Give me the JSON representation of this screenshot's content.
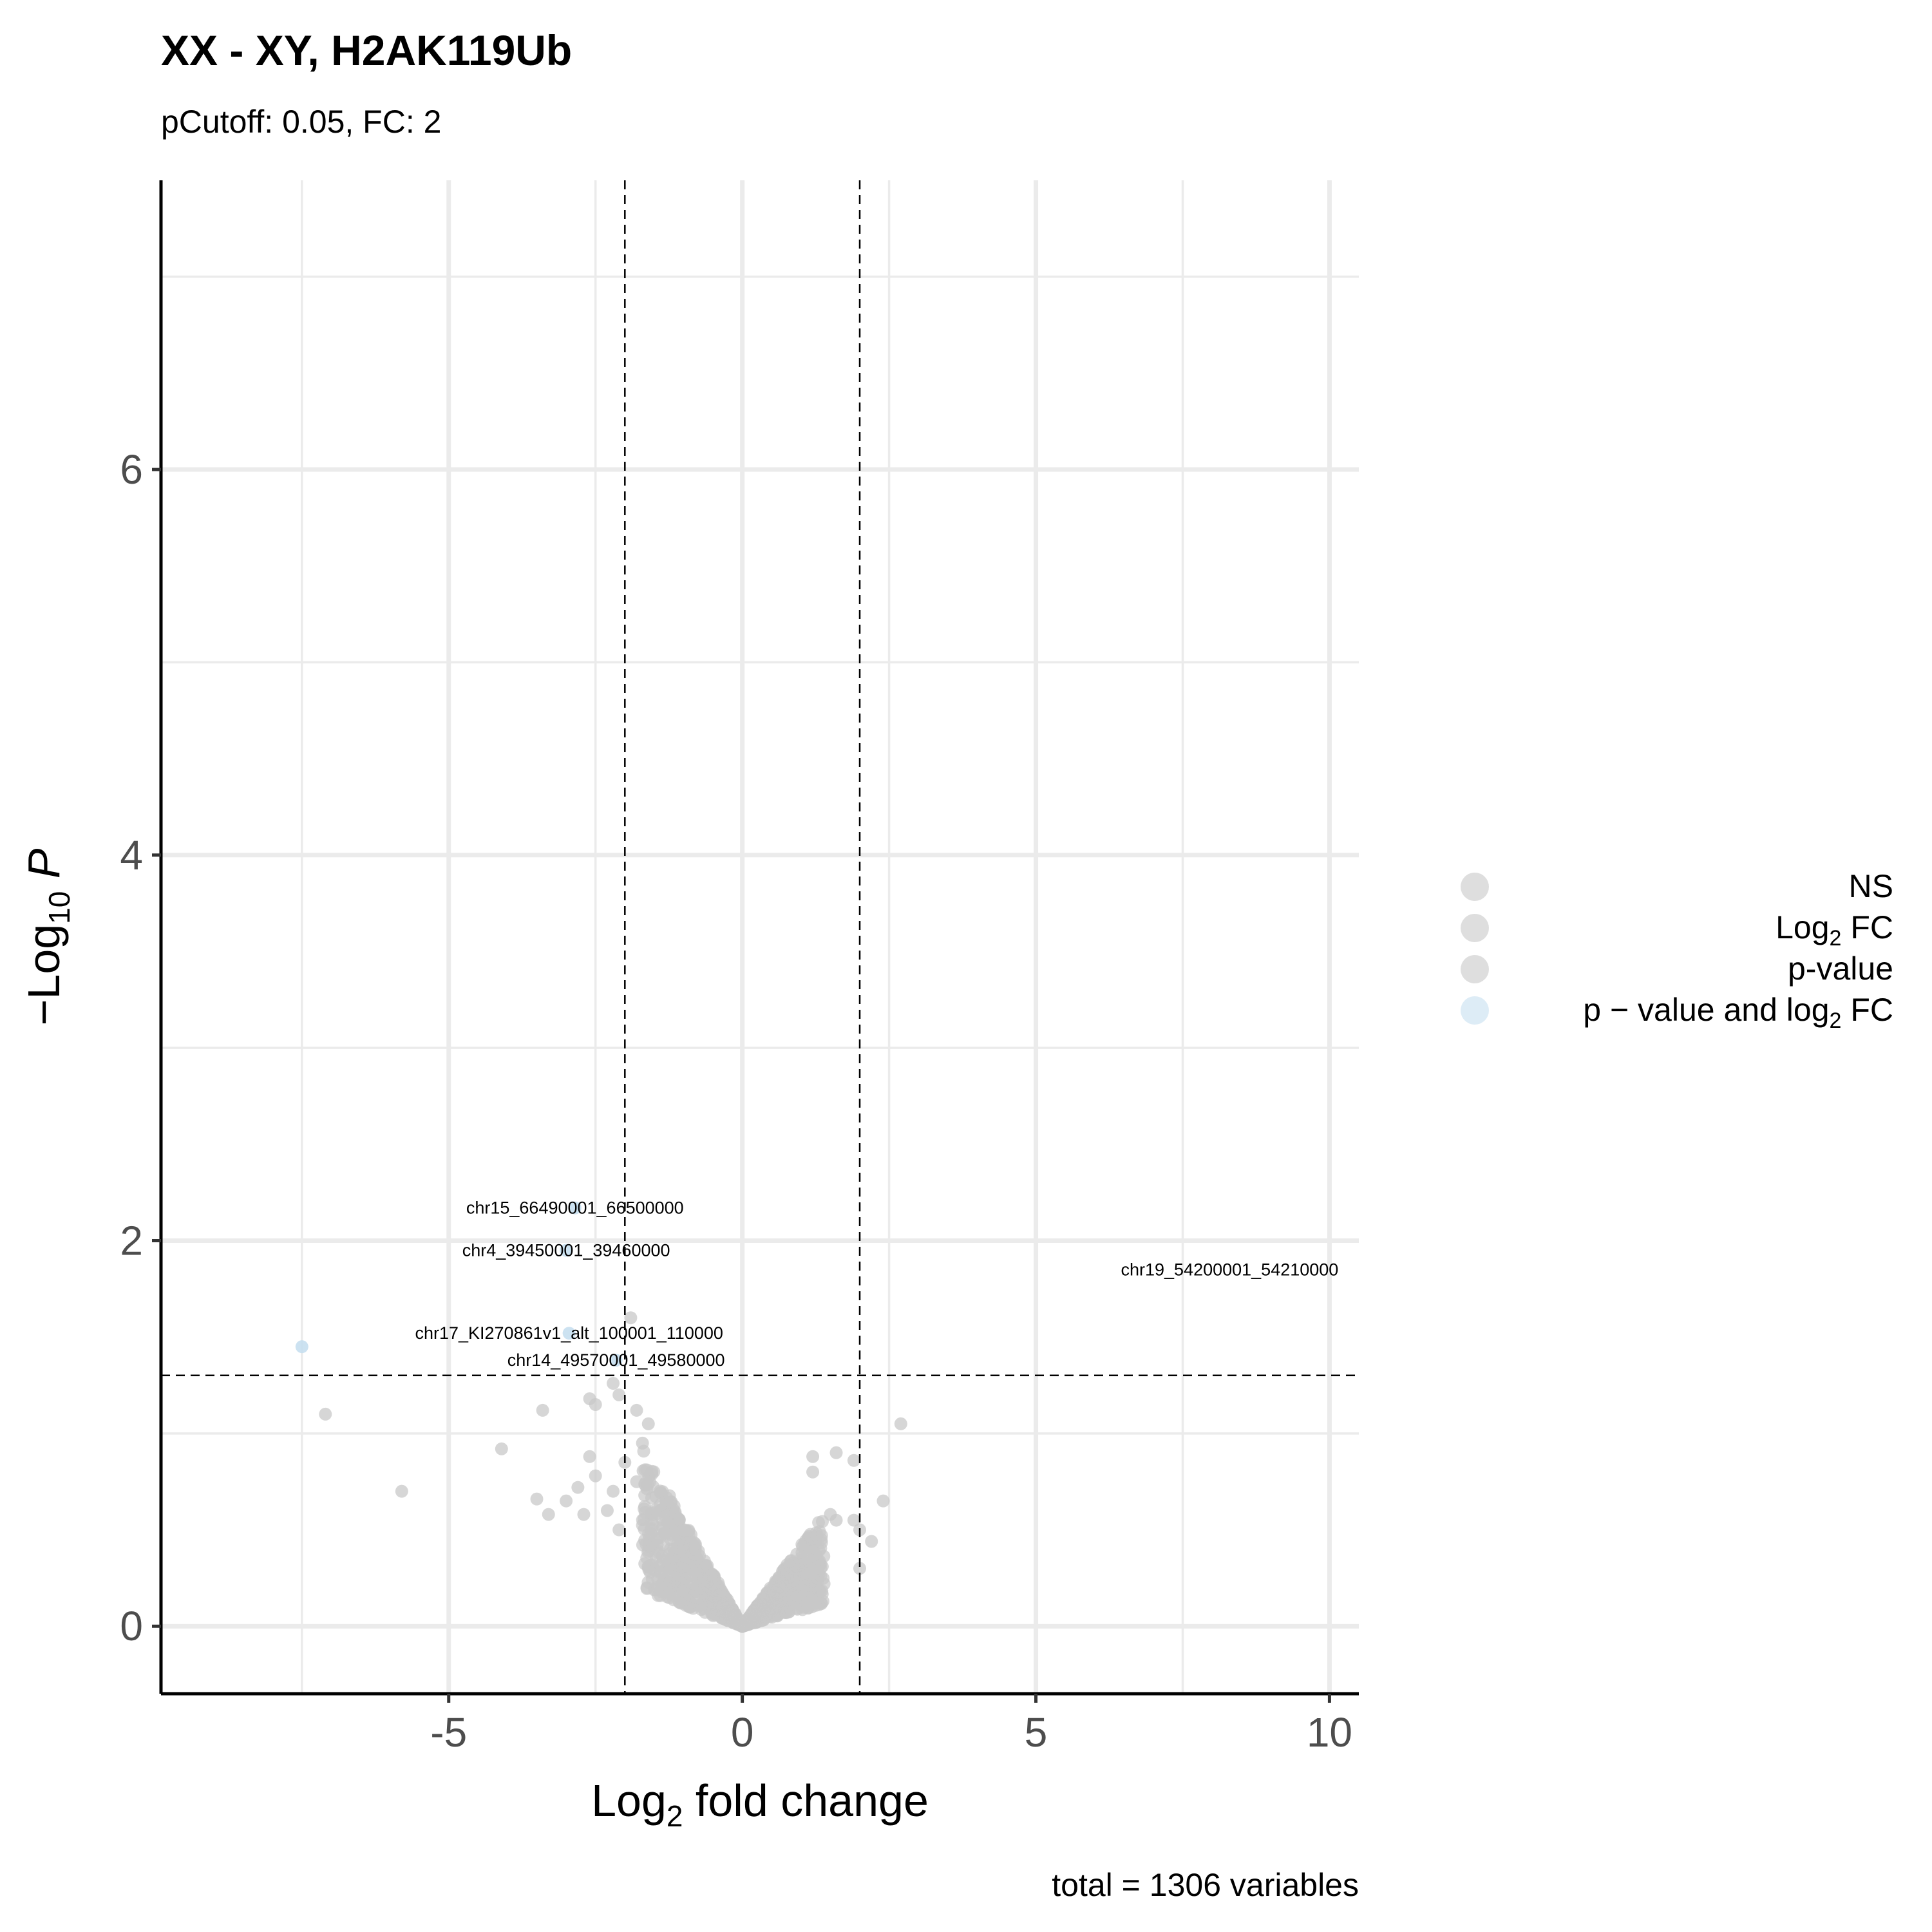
{
  "title": "XX - XY, H2AK119Ub",
  "subtitle": "pCutoff: 0.05, FC: 2",
  "caption": "total = 1306 variables",
  "colors": {
    "ns": "#c8c8c8",
    "sig": "#c6dff0",
    "grid": "#ebebeb",
    "axis": "#000000",
    "cutoff_line": "#000000",
    "label_text": "#000000"
  },
  "legend": {
    "items": [
      {
        "key": "ns",
        "label_html": "NS",
        "color": "#c8c8c8"
      },
      {
        "key": "log2fc",
        "label_html": "Log<sub>2</sub> FC",
        "color": "#c8c8c8"
      },
      {
        "key": "pvalue",
        "label_html": "p-value",
        "color": "#c8c8c8"
      },
      {
        "key": "both",
        "label_html": "p &minus; value and log<sub>2</sub> FC",
        "color": "#c6dff0"
      }
    ]
  },
  "chart_data": {
    "type": "scatter",
    "title": "XX - XY, H2AK119Ub",
    "subtitle": "pCutoff: 0.05, FC: 2",
    "xlabel": "Log2 fold change",
    "ylabel": "-Log10 P",
    "xlim": [
      -9.9,
      10.5
    ],
    "ylim": [
      -0.35,
      7.5
    ],
    "x_ticks": [
      -5,
      0,
      5,
      10
    ],
    "x_tick_labels": [
      "-5",
      "0",
      "5",
      "10"
    ],
    "y_ticks": [
      0,
      2,
      4,
      6
    ],
    "y_tick_labels": [
      "0",
      "2",
      "4",
      "6"
    ],
    "grid": true,
    "legend_position": "right",
    "cutoffs": {
      "log2fc": [
        -2,
        2
      ],
      "neg_log10_p": 1.301
    },
    "highlighted_points": [
      {
        "x": -7.5,
        "y": 1.45,
        "group": "p-value and log2 FC"
      },
      {
        "x": -2.95,
        "y": 1.52,
        "group": "p-value and log2 FC"
      },
      {
        "x": -2.15,
        "y": 1.38,
        "group": "p-value and log2 FC"
      },
      {
        "x": -2.85,
        "y": 2.17,
        "group": "p-value and log2 FC"
      },
      {
        "x": -3.0,
        "y": 1.95,
        "group": "p-value and log2 FC"
      }
    ],
    "labeled_points": [
      {
        "label": "chr15_66490001_66500000",
        "x": -2.85,
        "y": 2.17
      },
      {
        "label": "chr4_39450001_39460000",
        "x": -3.0,
        "y": 1.95
      },
      {
        "label": "chr19_54200001_54210000",
        "x": 8.3,
        "y": 1.85
      },
      {
        "label": "chr17_KI270861v1_alt_100001_110000",
        "x": -2.95,
        "y": 1.52
      },
      {
        "label": "chr14_49570001_49580000",
        "x": -2.15,
        "y": 1.38
      }
    ],
    "ns_points_sample": [
      {
        "x": -7.1,
        "y": 1.1
      },
      {
        "x": -5.8,
        "y": 0.7
      },
      {
        "x": -4.1,
        "y": 0.92
      },
      {
        "x": -3.4,
        "y": 1.12
      },
      {
        "x": -3.5,
        "y": 0.66
      },
      {
        "x": -3.3,
        "y": 0.58
      },
      {
        "x": -3.0,
        "y": 0.65
      },
      {
        "x": -2.8,
        "y": 0.72
      },
      {
        "x": -2.7,
        "y": 0.58
      },
      {
        "x": -2.6,
        "y": 0.88
      },
      {
        "x": -2.5,
        "y": 0.78
      },
      {
        "x": -2.3,
        "y": 0.6
      },
      {
        "x": -2.6,
        "y": 1.18
      },
      {
        "x": -2.5,
        "y": 1.15
      },
      {
        "x": -2.2,
        "y": 1.26
      },
      {
        "x": -1.9,
        "y": 1.6
      },
      {
        "x": -2.1,
        "y": 1.2
      },
      {
        "x": -1.8,
        "y": 1.12
      },
      {
        "x": -1.6,
        "y": 1.05
      },
      {
        "x": -1.7,
        "y": 0.95
      },
      {
        "x": -2.0,
        "y": 0.85
      },
      {
        "x": -1.8,
        "y": 0.75
      },
      {
        "x": -2.2,
        "y": 0.7
      },
      {
        "x": -2.1,
        "y": 0.5
      },
      {
        "x": 1.2,
        "y": 0.88
      },
      {
        "x": 1.6,
        "y": 0.9
      },
      {
        "x": 1.9,
        "y": 0.86
      },
      {
        "x": 2.7,
        "y": 1.05
      },
      {
        "x": 2.4,
        "y": 0.65
      },
      {
        "x": 1.2,
        "y": 0.8
      },
      {
        "x": 1.5,
        "y": 0.58
      },
      {
        "x": 1.6,
        "y": 0.55
      },
      {
        "x": 1.9,
        "y": 0.55
      },
      {
        "x": 2.0,
        "y": 0.5
      },
      {
        "x": 2.2,
        "y": 0.44
      },
      {
        "x": 2.0,
        "y": 0.3
      }
    ]
  }
}
